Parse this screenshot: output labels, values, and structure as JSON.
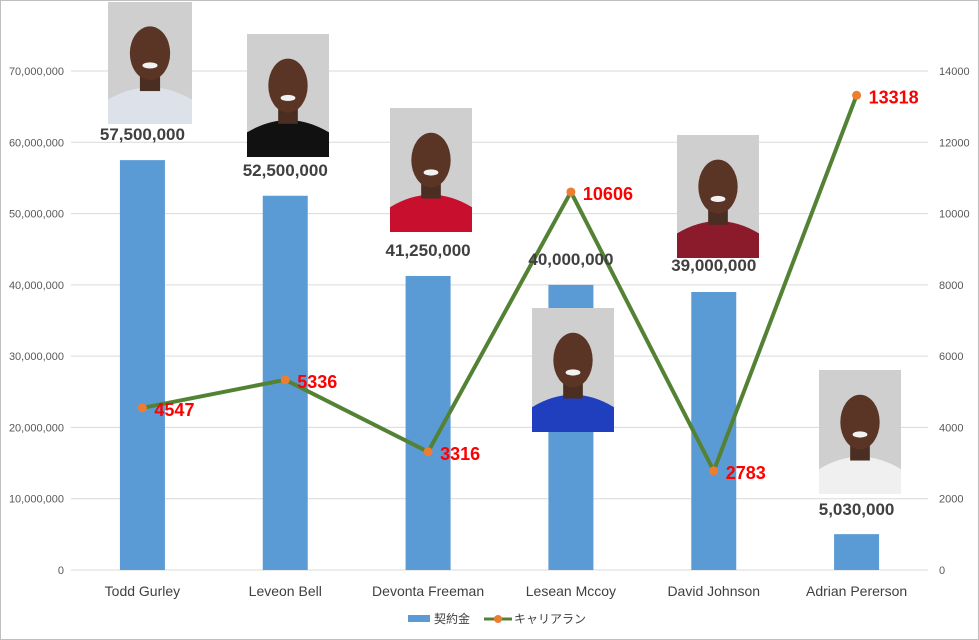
{
  "chart_data": {
    "type": "bar+line",
    "categories": [
      "Todd Gurley",
      "Leveon Bell",
      "Devonta Freeman",
      "Lesean Mccoy",
      "David Johnson",
      "Adrian Pererson"
    ],
    "series": [
      {
        "name": "契約金",
        "type": "bar",
        "axis": "left",
        "color": "#5b9bd5",
        "values": [
          57500000,
          52500000,
          41250000,
          40000000,
          39000000,
          5030000
        ],
        "labels": [
          "57,500,000",
          "52,500,000",
          "41,250,000",
          "40,000,000",
          "39,000,000",
          "5,030,000"
        ]
      },
      {
        "name": "キャリアラン",
        "type": "line",
        "axis": "right",
        "color": "#548235",
        "marker_color": "#ed7d31",
        "label_color": "#ff0000",
        "values": [
          4547,
          5336,
          3316,
          10606,
          2783,
          13318
        ],
        "labels": [
          "4547",
          "5336",
          "3316",
          "10606",
          "2783",
          "13318"
        ]
      }
    ],
    "y_left": {
      "range": [
        0,
        70000000
      ],
      "ticks": [
        0,
        10000000,
        20000000,
        30000000,
        40000000,
        50000000,
        60000000,
        70000000
      ],
      "tick_labels": [
        "0",
        "10,000,000",
        "20,000,000",
        "30,000,000",
        "40,000,000",
        "50,000,000",
        "60,000,000",
        "70,000,000"
      ]
    },
    "y_right": {
      "range": [
        0,
        14000
      ],
      "ticks": [
        0,
        2000,
        4000,
        6000,
        8000,
        10000,
        12000,
        14000
      ],
      "tick_labels": [
        "0",
        "2000",
        "4000",
        "6000",
        "8000",
        "10000",
        "12000",
        "14000"
      ]
    },
    "grid": true,
    "legend": {
      "position": "bottom",
      "items": [
        "契約金",
        "キャリアラン"
      ]
    }
  },
  "player_photos": [
    "Todd Gurley",
    "Leveon Bell",
    "Devonta Freeman",
    "Lesean Mccoy",
    "David Johnson",
    "Adrian Pererson"
  ],
  "photo_jerseys": [
    "#dde2ea",
    "#111111",
    "#c8102e",
    "#1f3fbf",
    "#8b1a2b",
    "#f0f0f0"
  ]
}
